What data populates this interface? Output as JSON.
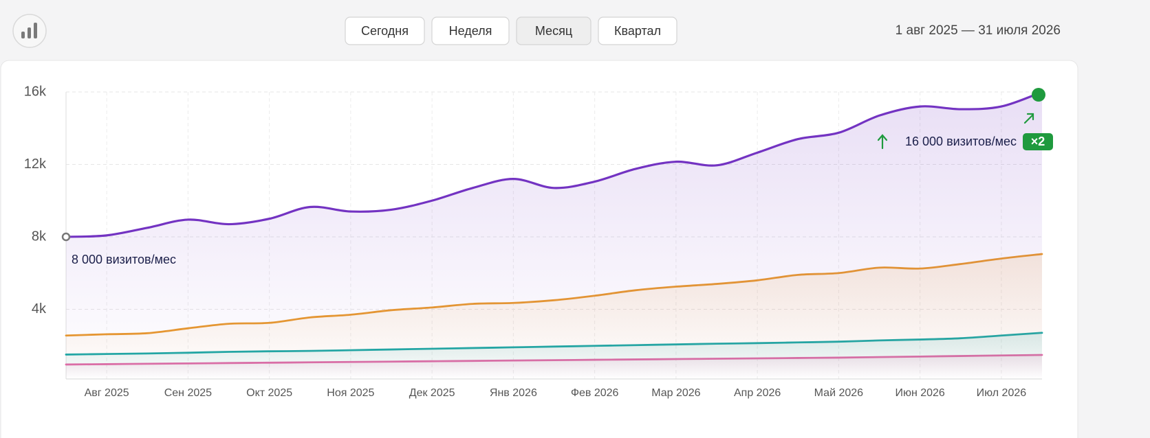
{
  "header": {
    "period_buttons": [
      {
        "label": "Сегодня",
        "active": false
      },
      {
        "label": "Неделя",
        "active": false
      },
      {
        "label": "Месяц",
        "active": true
      },
      {
        "label": "Квартал",
        "active": false
      }
    ],
    "date_range": "1 авг 2025 — 31 июля 2026"
  },
  "chart_data": {
    "type": "line",
    "categories": [
      null,
      "Авг 2025",
      null,
      "Сен 2025",
      null,
      "Окт 2025",
      null,
      "Ноя 2025",
      null,
      "Дек 2025",
      null,
      "Янв 2026",
      null,
      "Фев 2026",
      null,
      "Мар 2026",
      null,
      "Апр 2026",
      null,
      "Май 2026",
      null,
      "Июн 2026",
      null,
      "Июл 2026",
      null
    ],
    "series": [
      {
        "color": "#7333c2",
        "values": [
          8000,
          8080,
          8500,
          8950,
          8700,
          9000,
          9650,
          9400,
          9500,
          10000,
          10700,
          11200,
          10700,
          11050,
          11750,
          12150,
          11950,
          12650,
          13400,
          13750,
          14700,
          15200,
          15050,
          15200,
          16000
        ]
      },
      {
        "color": "#e8992e",
        "values": [
          2550,
          2620,
          2680,
          2950,
          3200,
          3250,
          3550,
          3700,
          3950,
          4100,
          4300,
          4350,
          4500,
          4750,
          5050,
          5250,
          5400,
          5600,
          5900,
          6000,
          6300,
          6250,
          6500,
          6800,
          7050
        ]
      },
      {
        "color": "#1ba8a8",
        "values": [
          1500,
          1530,
          1560,
          1600,
          1650,
          1680,
          1700,
          1740,
          1780,
          1820,
          1860,
          1900,
          1940,
          1980,
          2020,
          2060,
          2100,
          2130,
          2170,
          2210,
          2280,
          2330,
          2400,
          2550,
          2700
        ]
      },
      {
        "color": "#e56aa8",
        "values": [
          950,
          970,
          990,
          1010,
          1030,
          1050,
          1070,
          1090,
          1110,
          1130,
          1150,
          1170,
          1190,
          1210,
          1230,
          1250,
          1270,
          1290,
          1310,
          1330,
          1360,
          1390,
          1420,
          1450,
          1480
        ]
      }
    ],
    "ylim": [
      0,
      16000
    ],
    "yticks": [
      {
        "value": 4000,
        "label": "4k"
      },
      {
        "value": 8000,
        "label": "8k"
      },
      {
        "value": 12000,
        "label": "12k"
      },
      {
        "value": 16000,
        "label": "16k"
      }
    ],
    "grid": true,
    "annotations": [
      {
        "text": "8 000 визитов/мес"
      },
      {
        "text": "16 000 визитов/мес"
      },
      {
        "text": "×2"
      }
    ]
  }
}
